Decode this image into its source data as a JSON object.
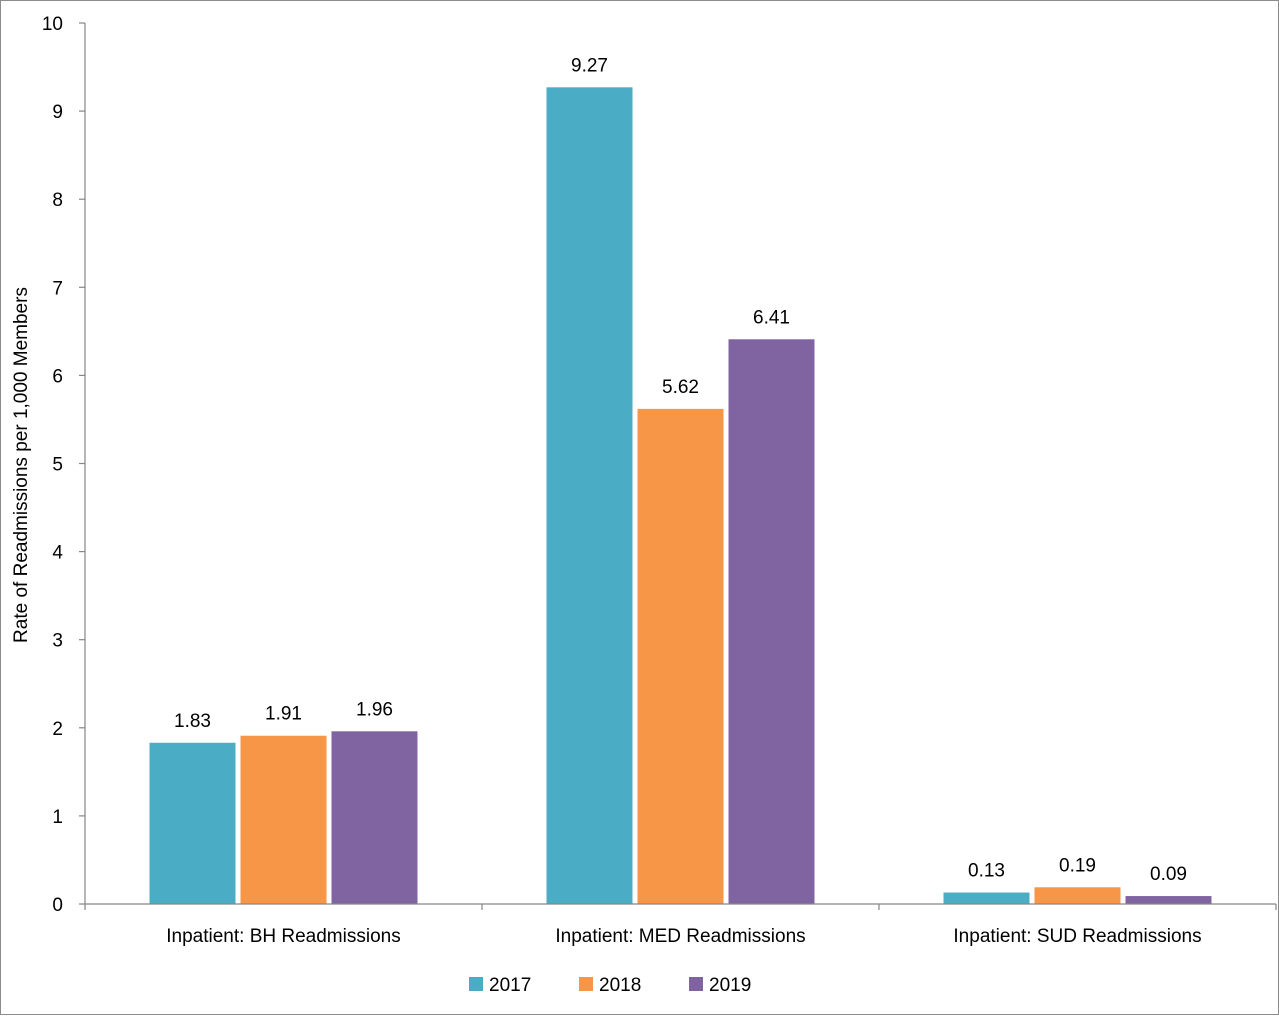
{
  "chart_data": {
    "type": "bar",
    "title": "",
    "xlabel": "",
    "ylabel": "Rate of Readmissions per 1,000 Members",
    "categories": [
      "Inpatient: BH Readmissions",
      "Inpatient: MED Readmissions",
      "Inpatient: SUD Readmissions"
    ],
    "series": [
      {
        "name": "2017",
        "color": "#4bacc6",
        "values": [
          1.83,
          9.27,
          0.13
        ],
        "labels": [
          "1.83",
          "9.27",
          "0.13"
        ]
      },
      {
        "name": "2018",
        "color": "#f79646",
        "values": [
          1.91,
          5.62,
          0.19
        ],
        "labels": [
          "1.91",
          "5.62",
          "0.19"
        ]
      },
      {
        "name": "2019",
        "color": "#8064a2",
        "values": [
          1.96,
          6.41,
          0.09
        ],
        "labels": [
          "1.96",
          "6.41",
          "0.09"
        ]
      }
    ],
    "ylim": [
      0,
      10
    ],
    "yticks": [
      0,
      1,
      2,
      3,
      4,
      5,
      6,
      7,
      8,
      9,
      10
    ],
    "grid": false,
    "legend_position": "bottom"
  }
}
